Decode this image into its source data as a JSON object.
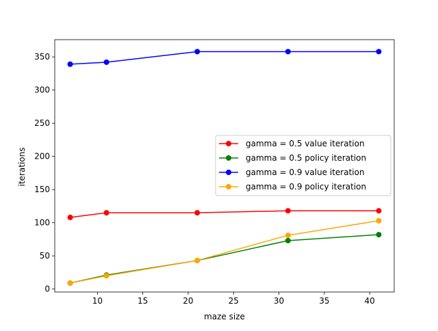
{
  "chart_data": {
    "type": "line",
    "title": "",
    "xlabel": "maze size",
    "ylabel": "iterations",
    "xlim": [
      5.3,
      42.7
    ],
    "ylim": [
      -4.5,
      376
    ],
    "xticks": [
      10,
      15,
      20,
      25,
      30,
      35,
      40
    ],
    "yticks": [
      0,
      50,
      100,
      150,
      200,
      250,
      300,
      350
    ],
    "grid": false,
    "legend_position": "center-right",
    "x": [
      7,
      11,
      21,
      31,
      41
    ],
    "series": [
      {
        "name": "gamma = 0.5 value iteration",
        "color": "#ff0000",
        "marker": "circle",
        "values": [
          108,
          115,
          115,
          118,
          118
        ]
      },
      {
        "name": "gamma = 0.5 policy iteration",
        "color": "#008000",
        "marker": "circle",
        "values": [
          9,
          21,
          43,
          73,
          82
        ]
      },
      {
        "name": "gamma = 0.9 value iteration",
        "color": "#0000ff",
        "marker": "circle",
        "values": [
          339,
          342,
          358,
          358,
          358
        ]
      },
      {
        "name": "gamma = 0.9 policy iteration",
        "color": "#ffa500",
        "marker": "circle",
        "values": [
          9,
          20,
          43,
          81,
          103
        ]
      }
    ]
  }
}
